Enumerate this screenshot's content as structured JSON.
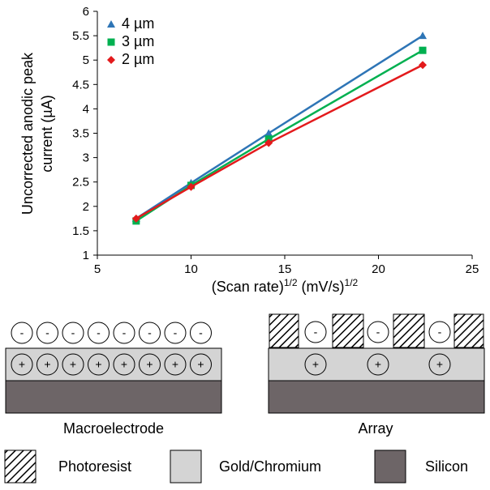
{
  "chart_data": {
    "type": "line",
    "x_label": [
      "(Scan rate)",
      "1/2",
      " (mV/s)",
      "1/2"
    ],
    "y_label": [
      "Uncorrected anodic peak",
      "current (µA)"
    ],
    "x": [
      7.071,
      10,
      14.142,
      22.361
    ],
    "series": [
      {
        "name": "4 µm",
        "color": "#2e75b6",
        "marker": "triangle",
        "values": [
          1.75,
          2.48,
          3.5,
          5.5
        ]
      },
      {
        "name": "3 µm",
        "color": "#00b050",
        "marker": "square",
        "values": [
          1.7,
          2.43,
          3.38,
          5.2
        ]
      },
      {
        "name": "2 µm",
        "color": "#e31a1c",
        "marker": "diamond",
        "values": [
          1.75,
          2.4,
          3.3,
          4.9
        ]
      }
    ],
    "xlim": [
      5,
      25
    ],
    "xticks": [
      5,
      10,
      15,
      20,
      25
    ],
    "ylim": [
      1,
      6
    ],
    "yticks": [
      1,
      1.5,
      2,
      2.5,
      3,
      3.5,
      4,
      4.5,
      5,
      5.5,
      6
    ],
    "legend": "upper left"
  },
  "diagram": {
    "plus_sign": "+",
    "minus_sign": "-",
    "macroelectrode": {
      "label": "Macroelectrode"
    },
    "array": {
      "label": "Array"
    },
    "legend": [
      {
        "label": "Photoresist"
      },
      {
        "label": "Gold/Chromium"
      },
      {
        "label": "Silicon"
      }
    ]
  }
}
